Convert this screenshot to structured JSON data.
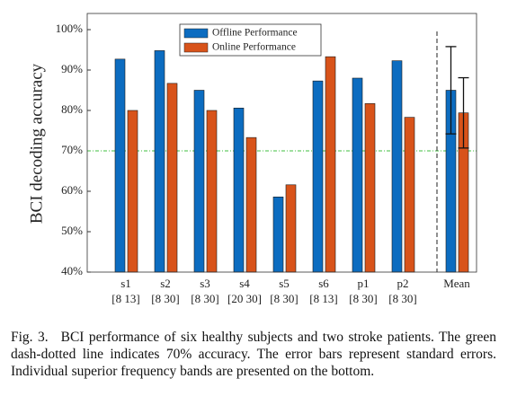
{
  "chart_data": {
    "type": "bar",
    "y_label": "BCI decoding accuracy",
    "categories": [
      "s1",
      "s2",
      "s3",
      "s4",
      "s5",
      "s6",
      "p1",
      "p2",
      "Mean"
    ],
    "category_sublabels": [
      "[8 13]",
      "[8 30]",
      "[8 30]",
      "[20 30]",
      "[8 30]",
      "[8 13]",
      "[8 30]",
      "[8 30]"
    ],
    "series": [
      {
        "name": "Offline Performance",
        "color": "#0c6cc0",
        "values": [
          92.7,
          94.8,
          85.0,
          80.6,
          58.6,
          87.3,
          88.0,
          92.3,
          85.0
        ],
        "errors": [
          null,
          null,
          null,
          null,
          null,
          null,
          null,
          null,
          10.8
        ]
      },
      {
        "name": "Online Performance",
        "color": "#d8531a",
        "values": [
          80.0,
          86.7,
          80.0,
          73.3,
          61.6,
          93.3,
          81.7,
          78.3,
          79.4
        ],
        "errors": [
          null,
          null,
          null,
          null,
          null,
          null,
          null,
          null,
          8.7
        ]
      }
    ],
    "ylim": [
      40,
      104
    ],
    "yticks": [
      {
        "value": 40,
        "label": "40%"
      },
      {
        "value": 50,
        "label": "50%"
      },
      {
        "value": 60,
        "label": "60%"
      },
      {
        "value": 70,
        "label": "70%"
      },
      {
        "value": 80,
        "label": "80%"
      },
      {
        "value": 90,
        "label": "90%"
      },
      {
        "value": 100,
        "label": "100%"
      }
    ],
    "reference_line": {
      "value": 70,
      "color": "#3fbf3f"
    },
    "legend": "top-left"
  },
  "caption": {
    "label": "Fig. 3.",
    "text": "BCI performance of six healthy subjects and two stroke patients. The green dash-dotted line indicates 70% accuracy. The error bars represent standard errors. Individual superior frequency bands are presented on the bottom."
  }
}
